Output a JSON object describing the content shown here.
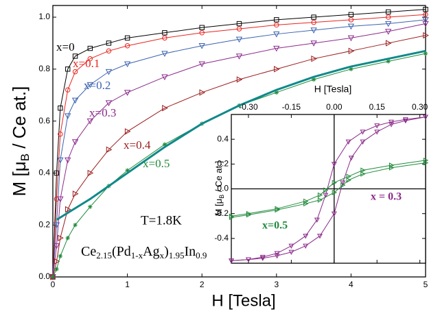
{
  "chart_data": [
    {
      "type": "line",
      "xlabel": "H [Tesla]",
      "ylabel": [
        "M [μ",
        "B",
        " / Ce at.]"
      ],
      "annotation": "T=1.8K",
      "formula": [
        "Ce",
        "2.15",
        "(Pd",
        "1-x",
        "Ag",
        "x",
        ")",
        "1.95",
        "In",
        "0.9"
      ],
      "xlim": [
        0,
        5
      ],
      "ylim": [
        0,
        1.045
      ],
      "xticks": [
        0,
        1,
        2,
        3,
        4,
        5
      ],
      "yticks": [
        {
          "value": 0,
          "label": "0.0"
        },
        0.2,
        0.4,
        0.6,
        0.8,
        {
          "value": 1,
          "label": "1.0"
        }
      ],
      "x": [
        0,
        0.05,
        0.1,
        0.2,
        0.3,
        0.5,
        0.75,
        1,
        1.5,
        2,
        2.5,
        3,
        3.5,
        4,
        4.5,
        5
      ],
      "series": [
        {
          "name": "x=0",
          "color": "#000000",
          "marker": "square",
          "values": [
            0,
            0.4,
            0.65,
            0.8,
            0.85,
            0.88,
            0.9,
            0.92,
            0.94,
            0.96,
            0.975,
            0.99,
            1.0,
            1.01,
            1.02,
            1.03
          ]
        },
        {
          "name": "x=0.1",
          "color": "#e8231e",
          "marker": "circle",
          "values": [
            0,
            0.3,
            0.55,
            0.72,
            0.79,
            0.84,
            0.87,
            0.89,
            0.92,
            0.94,
            0.955,
            0.97,
            0.98,
            0.99,
            1.0,
            1.01
          ]
        },
        {
          "name": "x=0.2",
          "color": "#3a62b0",
          "marker": "triangle-down",
          "values": [
            0,
            0.2,
            0.45,
            0.62,
            0.68,
            0.74,
            0.79,
            0.82,
            0.86,
            0.89,
            0.915,
            0.935,
            0.95,
            0.965,
            0.975,
            0.99
          ]
        },
        {
          "name": "x=0.3",
          "color": "#8b2a8b",
          "marker": "triangle-down",
          "values": [
            0,
            0.12,
            0.3,
            0.45,
            0.52,
            0.6,
            0.67,
            0.71,
            0.77,
            0.82,
            0.85,
            0.88,
            0.9,
            0.92,
            0.945,
            0.975
          ]
        },
        {
          "name": "x=0.4",
          "color": "#9b1c1c",
          "marker": "triangle-right",
          "values": [
            0,
            0.06,
            0.15,
            0.26,
            0.32,
            0.4,
            0.49,
            0.56,
            0.65,
            0.71,
            0.76,
            0.8,
            0.84,
            0.87,
            0.9,
            0.93
          ]
        },
        {
          "name": "x=0.5",
          "color": "#1f8a3a",
          "marker": "star",
          "values": [
            0,
            0.03,
            0.08,
            0.15,
            0.2,
            0.27,
            0.35,
            0.41,
            0.51,
            0.59,
            0.66,
            0.71,
            0.76,
            0.8,
            0.83,
            0.86
          ]
        },
        {
          "color": "#10898a",
          "marker": "none",
          "width": 3,
          "x": [
            0.05,
            0.5,
            1,
            1.5,
            2,
            2.5,
            3,
            3.5,
            4,
            4.5,
            5
          ],
          "values": [
            0.22,
            0.3,
            0.4,
            0.5,
            0.59,
            0.66,
            0.72,
            0.77,
            0.81,
            0.84,
            0.87
          ]
        }
      ]
    },
    {
      "type": "line",
      "xlabel": "H [Tesla]",
      "ylabel": [
        "M [μ",
        "B",
        " / Ce at.]"
      ],
      "xlim": [
        -0.36,
        0.32
      ],
      "ylim": [
        -0.6,
        0.6
      ],
      "xticks": [
        {
          "value": -0.3,
          "label": "-0.30"
        },
        {
          "value": -0.15,
          "label": "-0.15"
        },
        {
          "value": 0,
          "label": "0.00"
        },
        {
          "value": 0.15,
          "label": "0.15"
        },
        {
          "value": 0.3,
          "label": "0.30"
        }
      ],
      "yticks": [
        0.4,
        0.2,
        {
          "value": 0,
          "label": "0.0"
        },
        -0.2,
        -0.4
      ],
      "zero_lines": true,
      "series": [
        {
          "name": "x = 0.3",
          "color": "#8b2a8b",
          "marker": "triangle-down",
          "x": [
            -0.36,
            -0.3,
            -0.25,
            -0.2,
            -0.15,
            -0.1,
            -0.05,
            0,
            0.03,
            0.06,
            0.1,
            0.15,
            0.2,
            0.25,
            0.32
          ],
          "values": [
            -0.58,
            -0.57,
            -0.56,
            -0.54,
            -0.51,
            -0.46,
            -0.38,
            -0.2,
            0.05,
            0.25,
            0.38,
            0.46,
            0.52,
            0.55,
            0.58
          ]
        },
        {
          "color": "#8b2a8b",
          "marker": "triangle-down",
          "x": [
            0.32,
            0.25,
            0.2,
            0.15,
            0.1,
            0.05,
            0,
            -0.03,
            -0.06,
            -0.1,
            -0.15,
            -0.2,
            -0.25,
            -0.3,
            -0.36
          ],
          "values": [
            0.58,
            0.56,
            0.54,
            0.51,
            0.46,
            0.38,
            0.2,
            -0.05,
            -0.25,
            -0.38,
            -0.46,
            -0.52,
            -0.55,
            -0.57,
            -0.58
          ]
        },
        {
          "name": "x=0.5",
          "color": "#1f8a3a",
          "marker": "triangle-right",
          "x": [
            -0.36,
            -0.3,
            -0.2,
            -0.1,
            -0.05,
            0,
            0.03,
            0.05,
            0.1,
            0.2,
            0.32
          ],
          "values": [
            -0.23,
            -0.21,
            -0.17,
            -0.12,
            -0.09,
            -0.03,
            0.03,
            0.07,
            0.12,
            0.17,
            0.21
          ]
        },
        {
          "color": "#1f8a3a",
          "marker": "triangle-right",
          "x": [
            0.32,
            0.2,
            0.1,
            0.05,
            0,
            -0.03,
            -0.05,
            -0.1,
            -0.2,
            -0.3,
            -0.36
          ],
          "values": [
            0.23,
            0.19,
            0.15,
            0.1,
            0.05,
            -0.01,
            -0.05,
            -0.1,
            -0.16,
            -0.2,
            -0.22
          ]
        }
      ]
    }
  ]
}
